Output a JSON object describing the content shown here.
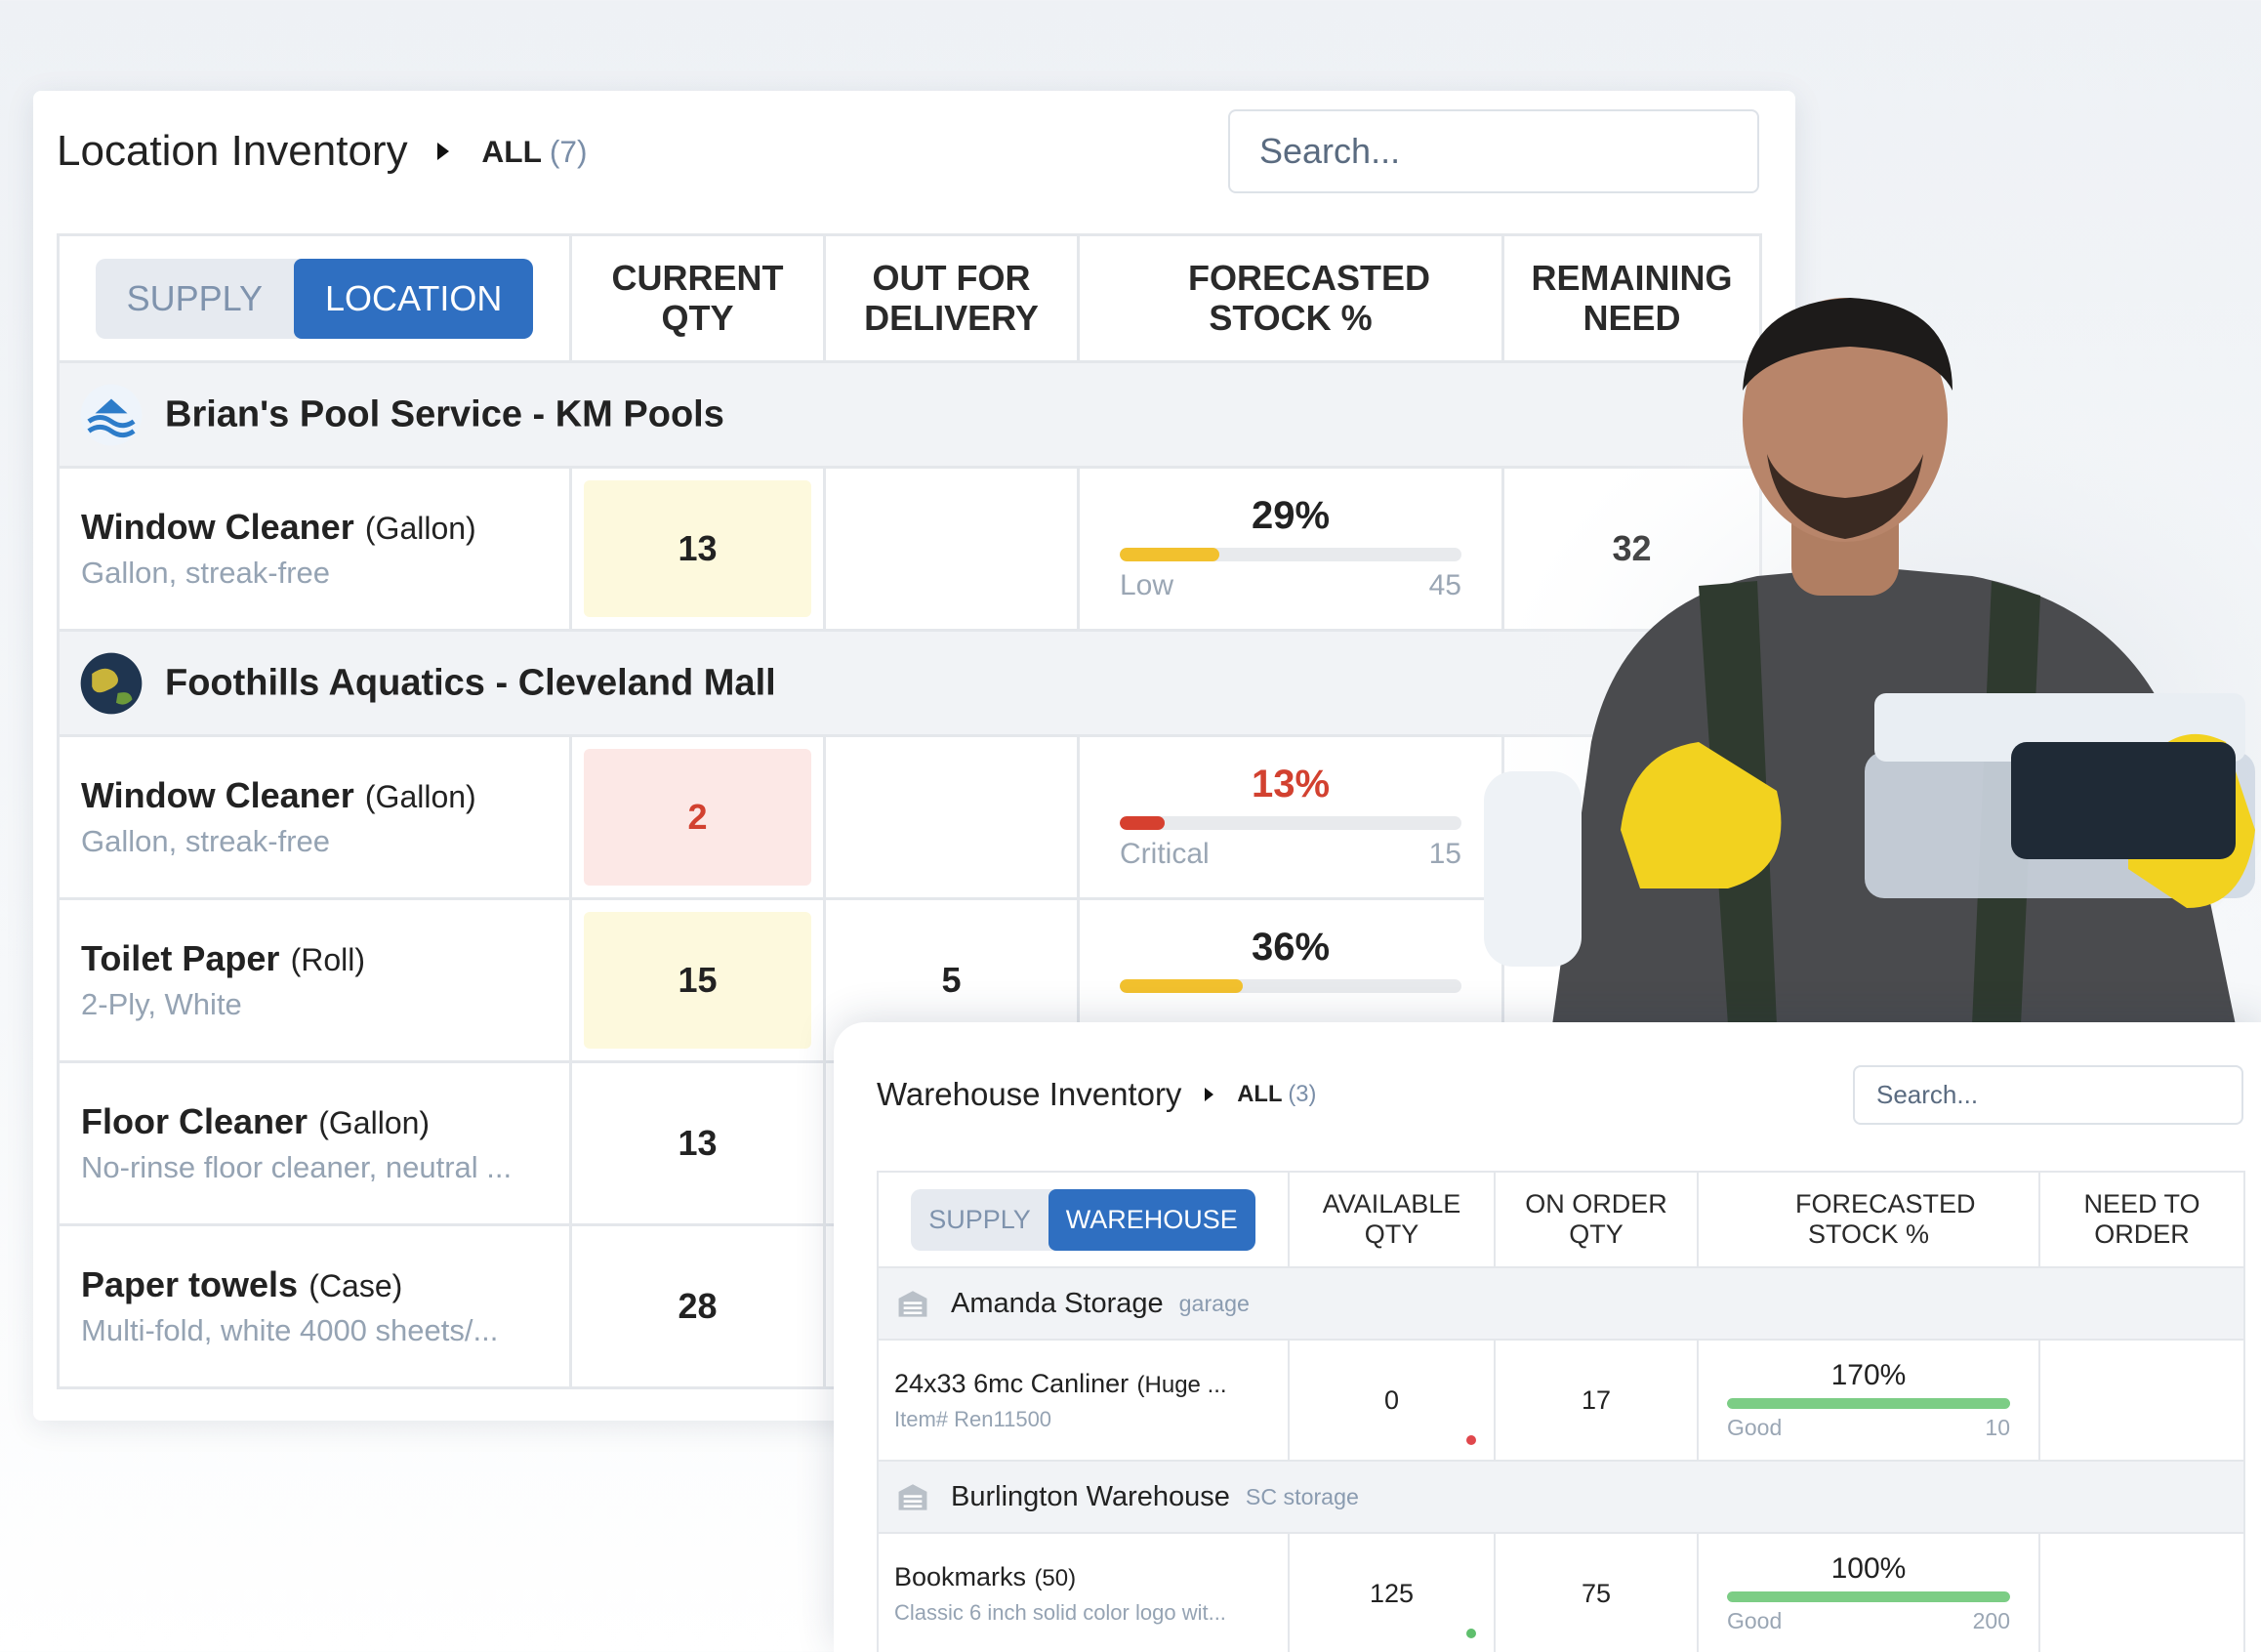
{
  "location_inventory": {
    "title": "Location Inventory",
    "filter": "ALL",
    "count": "(7)",
    "search_placeholder": "Search...",
    "toggle": [
      "SUPPLY",
      "LOCATION"
    ],
    "active_toggle": 1,
    "columns": [
      "CURRENT QTY",
      "OUT FOR DELIVERY",
      "FORECASTED STOCK %",
      "REMAINING NEED"
    ],
    "groups": [
      {
        "name": "Brian's Pool Service - KM Pools",
        "icon": "pool",
        "items": [
          {
            "name": "Window Cleaner",
            "unit": "(Gallon)",
            "description": "Gallon, streak-free",
            "qty": "13",
            "qty_level": "low",
            "forecast": {
              "value": 29,
              "label": "29%",
              "status": "Low",
              "target": "45",
              "level": "low"
            },
            "need": "32"
          }
        ]
      },
      {
        "name": "Foothills Aquatics - Cleveland Mall",
        "icon": "globe",
        "items": [
          {
            "name": "Window Cleaner",
            "unit": "(Gallon)",
            "description": "Gallon, streak-free",
            "qty": "2",
            "qty_level": "critical",
            "forecast": {
              "value": 13,
              "label": "13%",
              "status": "Critical",
              "target": "15",
              "level": "critical"
            }
          },
          {
            "name": "Toilet Paper",
            "unit": "(Roll)",
            "description": "2-Ply, White",
            "qty": "15",
            "qty_level": "low",
            "out_for_delivery": "5",
            "forecast": {
              "value": 36,
              "label": "36%",
              "level": "low"
            }
          },
          {
            "name": "Floor Cleaner",
            "unit": "(Gallon)",
            "description": "No-rinse floor cleaner, neutral ...",
            "qty": "13"
          },
          {
            "name": "Paper towels",
            "unit": "(Case)",
            "description": "Multi-fold, white 4000 sheets/...",
            "qty": "28"
          }
        ]
      }
    ]
  },
  "warehouse_inventory": {
    "title": "Warehouse Inventory",
    "filter": "ALL",
    "count": "(3)",
    "search_placeholder": "Search...",
    "toggle": [
      "SUPPLY",
      "WAREHOUSE"
    ],
    "active_toggle": 1,
    "columns": [
      "AVAILABLE QTY",
      "ON ORDER QTY",
      "FORECASTED STOCK %",
      "NEED TO ORDER"
    ],
    "groups": [
      {
        "name": "Amanda Storage",
        "tag": "garage",
        "icon": "building",
        "items": [
          {
            "name": "24x33 6mc Canliner",
            "unit": "(Huge ...",
            "description": "Item# Ren11500",
            "qty": "0",
            "dot": "red",
            "out_for_delivery": "17",
            "forecast": {
              "value": 170,
              "label": "170%",
              "status": "Good",
              "target": "10",
              "level": "good"
            }
          }
        ]
      },
      {
        "name": "Burlington Warehouse",
        "tag": "SC storage",
        "icon": "building",
        "items": [
          {
            "name": "Bookmarks",
            "unit": "(50)",
            "description": "Classic 6 inch solid color logo wit...",
            "qty": "125",
            "dot": "green",
            "out_for_delivery": "75",
            "forecast": {
              "value": 100,
              "label": "100%",
              "status": "Good",
              "target": "200",
              "level": "good"
            }
          }
        ]
      }
    ]
  }
}
